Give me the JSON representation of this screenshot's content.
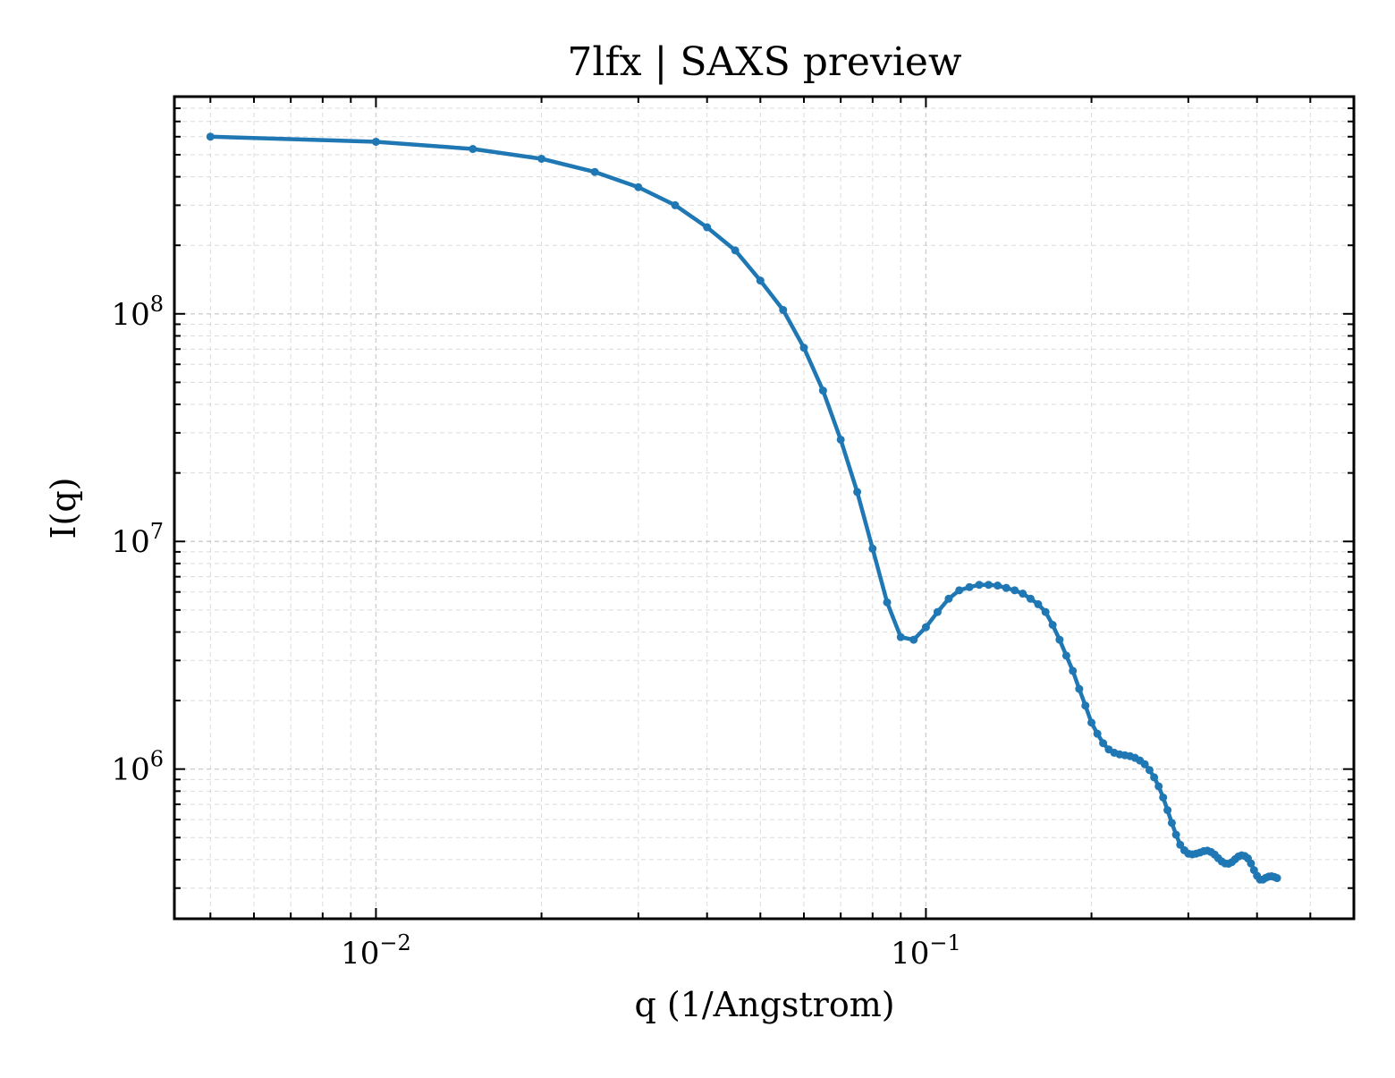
{
  "chart_data": {
    "type": "line",
    "title": "7lfx | SAXS preview",
    "xlabel": "q (1/Angstrom)",
    "ylabel": "I(q)",
    "xscale": "log",
    "yscale": "log",
    "xlim": [
      0.0043,
      0.6
    ],
    "ylim": [
      220000,
      900000000
    ],
    "grid": true,
    "legend": "none",
    "line_color": "#1f77b4",
    "x_tick_labels": [
      {
        "value": 0.01,
        "base": "10",
        "exp": "−2"
      },
      {
        "value": 0.1,
        "base": "10",
        "exp": "−1"
      }
    ],
    "y_tick_labels": [
      {
        "value": 1000000,
        "base": "10",
        "exp": "6"
      },
      {
        "value": 10000000,
        "base": "10",
        "exp": "7"
      },
      {
        "value": 100000000,
        "base": "10",
        "exp": "8"
      }
    ],
    "series": [
      {
        "marker": "dot",
        "points": [
          [
            0.005,
            600000000
          ],
          [
            0.01,
            570000000
          ],
          [
            0.015,
            530000000
          ],
          [
            0.02,
            480000000
          ],
          [
            0.025,
            420000000
          ],
          [
            0.03,
            360000000
          ],
          [
            0.035,
            300000000
          ],
          [
            0.04,
            240000000
          ],
          [
            0.045,
            190000000
          ],
          [
            0.05,
            140000000
          ],
          [
            0.055,
            104000000
          ],
          [
            0.06,
            71000000
          ],
          [
            0.065,
            46000000
          ],
          [
            0.07,
            28000000
          ],
          [
            0.075,
            16500000
          ],
          [
            0.08,
            9300000
          ],
          [
            0.085,
            5400000
          ],
          [
            0.09,
            3800000
          ],
          [
            0.095,
            3700000
          ],
          [
            0.1,
            4200000
          ],
          [
            0.105,
            4900000
          ],
          [
            0.11,
            5600000
          ],
          [
            0.115,
            6100000
          ],
          [
            0.12,
            6300000
          ],
          [
            0.125,
            6450000
          ],
          [
            0.13,
            6450000
          ],
          [
            0.135,
            6400000
          ],
          [
            0.14,
            6250000
          ],
          [
            0.145,
            6100000
          ],
          [
            0.15,
            5900000
          ],
          [
            0.155,
            5600000
          ],
          [
            0.16,
            5300000
          ],
          [
            0.165,
            4900000
          ],
          [
            0.17,
            4300000
          ],
          [
            0.175,
            3700000
          ],
          [
            0.18,
            3150000
          ],
          [
            0.185,
            2700000
          ],
          [
            0.19,
            2250000
          ],
          [
            0.195,
            1900000
          ],
          [
            0.2,
            1600000
          ],
          [
            0.205,
            1430000
          ],
          [
            0.21,
            1300000
          ],
          [
            0.215,
            1220000
          ],
          [
            0.22,
            1180000
          ],
          [
            0.225,
            1160000
          ],
          [
            0.23,
            1150000
          ],
          [
            0.235,
            1140000
          ],
          [
            0.24,
            1120000
          ],
          [
            0.245,
            1090000
          ],
          [
            0.25,
            1050000
          ],
          [
            0.255,
            990000
          ],
          [
            0.26,
            920000
          ],
          [
            0.265,
            840000
          ],
          [
            0.27,
            750000
          ],
          [
            0.275,
            660000
          ],
          [
            0.28,
            580000
          ],
          [
            0.285,
            515000
          ],
          [
            0.29,
            465000
          ],
          [
            0.295,
            440000
          ],
          [
            0.3,
            425000
          ],
          [
            0.305,
            422000
          ],
          [
            0.31,
            425000
          ],
          [
            0.315,
            430000
          ],
          [
            0.32,
            436000
          ],
          [
            0.325,
            438000
          ],
          [
            0.33,
            432000
          ],
          [
            0.335,
            421000
          ],
          [
            0.34,
            406000
          ],
          [
            0.345,
            393000
          ],
          [
            0.35,
            385000
          ],
          [
            0.355,
            384000
          ],
          [
            0.36,
            390000
          ],
          [
            0.365,
            402000
          ],
          [
            0.37,
            413000
          ],
          [
            0.375,
            418000
          ],
          [
            0.38,
            415000
          ],
          [
            0.385,
            405000
          ],
          [
            0.39,
            385000
          ],
          [
            0.395,
            360000
          ],
          [
            0.4,
            340000
          ],
          [
            0.405,
            327000
          ],
          [
            0.41,
            327000
          ],
          [
            0.415,
            333000
          ],
          [
            0.42,
            337000
          ],
          [
            0.425,
            338000
          ],
          [
            0.43,
            336000
          ],
          [
            0.435,
            332000
          ]
        ]
      }
    ]
  }
}
